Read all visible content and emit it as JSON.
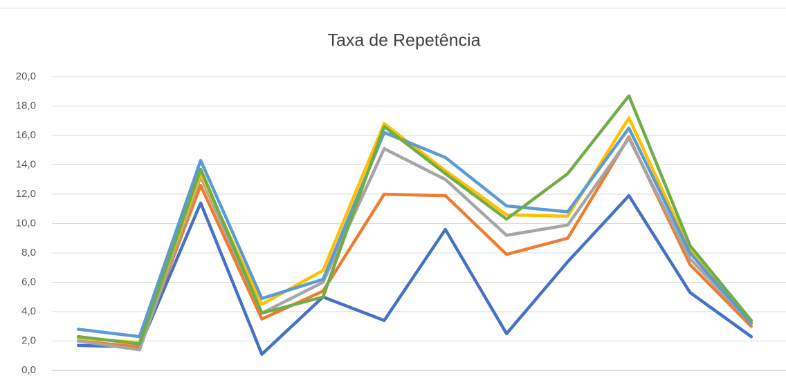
{
  "chart_data": {
    "type": "line",
    "title": "Taxa de Repetência",
    "categories": [
      null,
      null,
      null,
      null,
      null,
      null,
      null,
      null,
      null,
      null,
      null,
      null
    ],
    "series": [
      {
        "color": "#4472c4",
        "values": [
          1.7,
          1.6,
          11.4,
          1.1,
          5.0,
          3.4,
          9.6,
          2.5,
          7.4,
          11.9,
          5.3,
          2.3
        ]
      },
      {
        "color": "#ed7d31",
        "values": [
          2.0,
          1.6,
          12.6,
          3.5,
          5.4,
          12.0,
          11.9,
          7.9,
          9.0,
          15.9,
          7.2,
          3.0
        ]
      },
      {
        "color": "#a5a5a5",
        "values": [
          2.0,
          1.4,
          13.2,
          3.9,
          6.0,
          15.1,
          13.0,
          9.2,
          9.9,
          15.8,
          7.6,
          3.2
        ]
      },
      {
        "color": "#ffc000",
        "values": [
          2.2,
          1.9,
          13.4,
          4.5,
          6.8,
          16.8,
          13.6,
          10.6,
          10.5,
          17.2,
          8.2,
          3.3
        ]
      },
      {
        "color": "#5b9bd5",
        "values": [
          2.8,
          2.3,
          14.3,
          4.9,
          6.2,
          16.2,
          14.5,
          11.2,
          10.8,
          16.5,
          8.0,
          3.2
        ]
      },
      {
        "color": "#70ad47",
        "values": [
          2.3,
          1.8,
          13.7,
          3.9,
          5.0,
          16.6,
          13.4,
          10.3,
          13.4,
          18.7,
          8.5,
          3.4
        ]
      }
    ],
    "ylim": [
      0,
      20
    ],
    "yticks": [
      {
        "value": 0,
        "label": "0,0"
      },
      {
        "value": 2,
        "label": "2,0"
      },
      {
        "value": 4,
        "label": "4,0"
      },
      {
        "value": 6,
        "label": "6,0"
      },
      {
        "value": 8,
        "label": "8,0"
      },
      {
        "value": 10,
        "label": "10,0"
      },
      {
        "value": 12,
        "label": "12,0"
      },
      {
        "value": 14,
        "label": "14,0"
      },
      {
        "value": 16,
        "label": "16,0"
      },
      {
        "value": 18,
        "label": "18,0"
      },
      {
        "value": 20,
        "label": "20,0"
      }
    ],
    "grid": true
  }
}
